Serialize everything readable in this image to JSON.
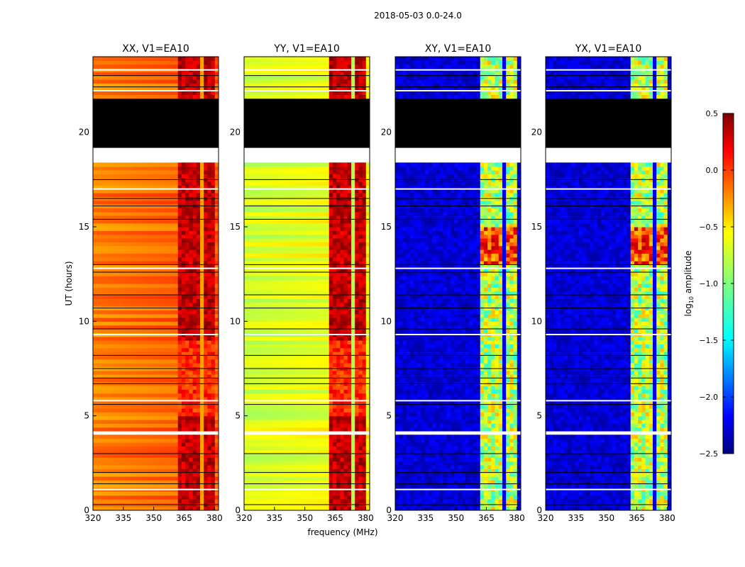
{
  "suptitle": "2018-05-03 0.0-24.0",
  "chart_data": {
    "type": "heatmap",
    "ylabel": "UT (hours)",
    "xlabel": "frequency (MHz)",
    "xlim": [
      320,
      382
    ],
    "ylim": [
      0,
      24
    ],
    "xticks": [
      320,
      335,
      350,
      365,
      380
    ],
    "yticks": [
      0,
      5,
      10,
      15,
      20
    ],
    "colorscale": "jet",
    "panels": [
      {
        "title": "XX, V1=EA10",
        "kind": "parallel",
        "base": -0.25
      },
      {
        "title": "YY, V1=EA10",
        "kind": "parallel",
        "base": -0.75
      },
      {
        "title": "XY, V1=EA10",
        "kind": "cross",
        "base": -2.4
      },
      {
        "title": "YX, V1=EA10",
        "kind": "cross",
        "base": -2.4
      }
    ],
    "rfi_band_mhz": [
      362,
      380
    ],
    "missing_bands_hours": [
      [
        18.4,
        19.3
      ],
      [
        4.0,
        4.3
      ]
    ],
    "flagged_black_hours": [
      [
        19.3,
        21.2
      ],
      [
        21.3,
        21.9
      ]
    ],
    "colorbar": {
      "label": "log10 amplitude",
      "min": -2.5,
      "max": 0.5,
      "ticks": [
        0.5,
        0.0,
        -0.5,
        -1.0,
        -1.5,
        -2.0,
        -2.5
      ],
      "tick_labels": [
        "0.5",
        "0.0",
        "−0.5",
        "−1.0",
        "−1.5",
        "−2.0",
        "−2.5"
      ]
    }
  }
}
